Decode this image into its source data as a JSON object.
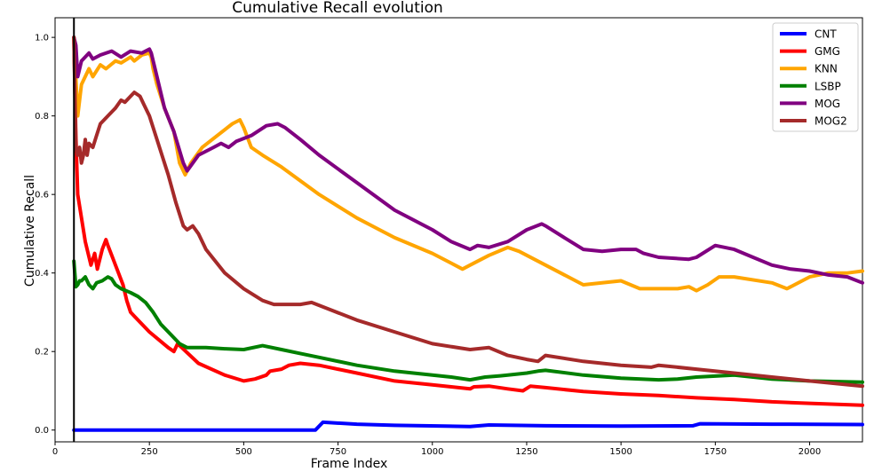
{
  "chart_data": {
    "type": "line",
    "title": "Cumulative Recall evolution",
    "xlabel": "Frame Index",
    "ylabel": "Cumulative Recall",
    "xlim": [
      0,
      2140
    ],
    "ylim": [
      -0.03,
      1.05
    ],
    "x_ticks": [
      0,
      250,
      500,
      750,
      1000,
      1250,
      1500,
      1750,
      2000
    ],
    "x_tick_labels": [
      "0",
      "250",
      "500",
      "750",
      "1000",
      "1250",
      "1500",
      "1750",
      "2000"
    ],
    "y_ticks": [
      0.0,
      0.2,
      0.4,
      0.6,
      0.8,
      1.0
    ],
    "y_tick_labels": [
      "0.0",
      "0.2",
      "0.4",
      "0.6",
      "0.8",
      "1.0"
    ],
    "grid": false,
    "legend_position": "top-right",
    "vertical_line_x": 50,
    "series": [
      {
        "name": "CNT",
        "color": "#0000ff",
        "points": [
          [
            50,
            0.0
          ],
          [
            690,
            0.0
          ],
          [
            710,
            0.02
          ],
          [
            800,
            0.015
          ],
          [
            900,
            0.012
          ],
          [
            1100,
            0.009
          ],
          [
            1150,
            0.013
          ],
          [
            1300,
            0.011
          ],
          [
            1500,
            0.01
          ],
          [
            1690,
            0.011
          ],
          [
            1710,
            0.016
          ],
          [
            1900,
            0.015
          ],
          [
            2140,
            0.014
          ]
        ]
      },
      {
        "name": "GMG",
        "color": "#ff0000",
        "points": [
          [
            50,
            1.0
          ],
          [
            55,
            0.75
          ],
          [
            60,
            0.6
          ],
          [
            80,
            0.48
          ],
          [
            95,
            0.42
          ],
          [
            105,
            0.45
          ],
          [
            112,
            0.41
          ],
          [
            125,
            0.46
          ],
          [
            135,
            0.485
          ],
          [
            140,
            0.47
          ],
          [
            160,
            0.42
          ],
          [
            180,
            0.37
          ],
          [
            190,
            0.33
          ],
          [
            200,
            0.3
          ],
          [
            210,
            0.29
          ],
          [
            250,
            0.25
          ],
          [
            300,
            0.21
          ],
          [
            315,
            0.2
          ],
          [
            325,
            0.22
          ],
          [
            380,
            0.17
          ],
          [
            450,
            0.14
          ],
          [
            500,
            0.125
          ],
          [
            530,
            0.13
          ],
          [
            560,
            0.14
          ],
          [
            570,
            0.15
          ],
          [
            600,
            0.155
          ],
          [
            620,
            0.165
          ],
          [
            650,
            0.17
          ],
          [
            700,
            0.165
          ],
          [
            800,
            0.145
          ],
          [
            900,
            0.125
          ],
          [
            1000,
            0.115
          ],
          [
            1050,
            0.11
          ],
          [
            1100,
            0.105
          ],
          [
            1110,
            0.11
          ],
          [
            1150,
            0.112
          ],
          [
            1200,
            0.105
          ],
          [
            1240,
            0.1
          ],
          [
            1260,
            0.112
          ],
          [
            1300,
            0.108
          ],
          [
            1400,
            0.098
          ],
          [
            1500,
            0.092
          ],
          [
            1600,
            0.088
          ],
          [
            1700,
            0.082
          ],
          [
            1800,
            0.078
          ],
          [
            1900,
            0.072
          ],
          [
            2000,
            0.068
          ],
          [
            2140,
            0.063
          ]
        ]
      },
      {
        "name": "KNN",
        "color": "#ffa500",
        "points": [
          [
            50,
            1.0
          ],
          [
            60,
            0.8
          ],
          [
            70,
            0.88
          ],
          [
            90,
            0.92
          ],
          [
            100,
            0.9
          ],
          [
            120,
            0.93
          ],
          [
            135,
            0.92
          ],
          [
            160,
            0.94
          ],
          [
            175,
            0.935
          ],
          [
            200,
            0.95
          ],
          [
            210,
            0.94
          ],
          [
            230,
            0.955
          ],
          [
            250,
            0.96
          ],
          [
            255,
            0.95
          ],
          [
            260,
            0.92
          ],
          [
            270,
            0.88
          ],
          [
            290,
            0.82
          ],
          [
            315,
            0.76
          ],
          [
            330,
            0.68
          ],
          [
            345,
            0.65
          ],
          [
            360,
            0.68
          ],
          [
            390,
            0.72
          ],
          [
            430,
            0.75
          ],
          [
            470,
            0.78
          ],
          [
            490,
            0.79
          ],
          [
            500,
            0.77
          ],
          [
            520,
            0.72
          ],
          [
            550,
            0.7
          ],
          [
            600,
            0.67
          ],
          [
            700,
            0.6
          ],
          [
            800,
            0.54
          ],
          [
            900,
            0.49
          ],
          [
            1000,
            0.45
          ],
          [
            1050,
            0.425
          ],
          [
            1080,
            0.41
          ],
          [
            1100,
            0.42
          ],
          [
            1150,
            0.445
          ],
          [
            1200,
            0.465
          ],
          [
            1230,
            0.455
          ],
          [
            1300,
            0.42
          ],
          [
            1400,
            0.37
          ],
          [
            1500,
            0.38
          ],
          [
            1550,
            0.36
          ],
          [
            1650,
            0.36
          ],
          [
            1680,
            0.365
          ],
          [
            1700,
            0.355
          ],
          [
            1730,
            0.37
          ],
          [
            1760,
            0.39
          ],
          [
            1800,
            0.39
          ],
          [
            1900,
            0.375
          ],
          [
            1940,
            0.36
          ],
          [
            2000,
            0.39
          ],
          [
            2050,
            0.4
          ],
          [
            2100,
            0.4
          ],
          [
            2140,
            0.405
          ]
        ]
      },
      {
        "name": "LSBP",
        "color": "#008000",
        "points": [
          [
            50,
            0.43
          ],
          [
            55,
            0.365
          ],
          [
            60,
            0.37
          ],
          [
            65,
            0.38
          ],
          [
            70,
            0.38
          ],
          [
            80,
            0.39
          ],
          [
            90,
            0.37
          ],
          [
            100,
            0.36
          ],
          [
            110,
            0.375
          ],
          [
            125,
            0.38
          ],
          [
            140,
            0.39
          ],
          [
            150,
            0.385
          ],
          [
            160,
            0.37
          ],
          [
            175,
            0.36
          ],
          [
            200,
            0.35
          ],
          [
            220,
            0.34
          ],
          [
            240,
            0.325
          ],
          [
            260,
            0.3
          ],
          [
            280,
            0.27
          ],
          [
            310,
            0.24
          ],
          [
            330,
            0.22
          ],
          [
            350,
            0.21
          ],
          [
            400,
            0.21
          ],
          [
            450,
            0.207
          ],
          [
            500,
            0.205
          ],
          [
            550,
            0.215
          ],
          [
            600,
            0.205
          ],
          [
            650,
            0.195
          ],
          [
            700,
            0.185
          ],
          [
            800,
            0.165
          ],
          [
            900,
            0.15
          ],
          [
            1000,
            0.14
          ],
          [
            1050,
            0.135
          ],
          [
            1100,
            0.128
          ],
          [
            1140,
            0.135
          ],
          [
            1180,
            0.138
          ],
          [
            1200,
            0.14
          ],
          [
            1250,
            0.145
          ],
          [
            1280,
            0.15
          ],
          [
            1300,
            0.152
          ],
          [
            1400,
            0.14
          ],
          [
            1500,
            0.132
          ],
          [
            1600,
            0.128
          ],
          [
            1650,
            0.13
          ],
          [
            1700,
            0.135
          ],
          [
            1800,
            0.14
          ],
          [
            1900,
            0.13
          ],
          [
            2000,
            0.125
          ],
          [
            2140,
            0.122
          ]
        ]
      },
      {
        "name": "MOG",
        "color": "#800080",
        "points": [
          [
            50,
            1.0
          ],
          [
            55,
            0.98
          ],
          [
            60,
            0.9
          ],
          [
            70,
            0.94
          ],
          [
            90,
            0.96
          ],
          [
            100,
            0.945
          ],
          [
            120,
            0.955
          ],
          [
            150,
            0.965
          ],
          [
            175,
            0.95
          ],
          [
            200,
            0.965
          ],
          [
            230,
            0.96
          ],
          [
            250,
            0.97
          ],
          [
            255,
            0.96
          ],
          [
            270,
            0.9
          ],
          [
            290,
            0.82
          ],
          [
            315,
            0.76
          ],
          [
            340,
            0.68
          ],
          [
            350,
            0.66
          ],
          [
            380,
            0.7
          ],
          [
            420,
            0.72
          ],
          [
            440,
            0.73
          ],
          [
            460,
            0.72
          ],
          [
            480,
            0.735
          ],
          [
            520,
            0.75
          ],
          [
            560,
            0.775
          ],
          [
            590,
            0.78
          ],
          [
            610,
            0.77
          ],
          [
            650,
            0.74
          ],
          [
            700,
            0.7
          ],
          [
            800,
            0.63
          ],
          [
            900,
            0.56
          ],
          [
            1000,
            0.51
          ],
          [
            1050,
            0.48
          ],
          [
            1100,
            0.46
          ],
          [
            1120,
            0.47
          ],
          [
            1150,
            0.465
          ],
          [
            1200,
            0.48
          ],
          [
            1250,
            0.51
          ],
          [
            1290,
            0.525
          ],
          [
            1300,
            0.52
          ],
          [
            1350,
            0.49
          ],
          [
            1400,
            0.46
          ],
          [
            1450,
            0.455
          ],
          [
            1500,
            0.46
          ],
          [
            1540,
            0.46
          ],
          [
            1560,
            0.45
          ],
          [
            1600,
            0.44
          ],
          [
            1680,
            0.435
          ],
          [
            1700,
            0.44
          ],
          [
            1750,
            0.47
          ],
          [
            1800,
            0.46
          ],
          [
            1850,
            0.44
          ],
          [
            1900,
            0.42
          ],
          [
            1950,
            0.41
          ],
          [
            2000,
            0.405
          ],
          [
            2050,
            0.395
          ],
          [
            2100,
            0.39
          ],
          [
            2140,
            0.375
          ]
        ]
      },
      {
        "name": "MOG2",
        "color": "#a52a2a",
        "points": [
          [
            50,
            1.0
          ],
          [
            55,
            0.72
          ],
          [
            60,
            0.7
          ],
          [
            65,
            0.72
          ],
          [
            70,
            0.68
          ],
          [
            75,
            0.7
          ],
          [
            80,
            0.74
          ],
          [
            85,
            0.7
          ],
          [
            90,
            0.73
          ],
          [
            100,
            0.72
          ],
          [
            110,
            0.75
          ],
          [
            120,
            0.78
          ],
          [
            140,
            0.8
          ],
          [
            160,
            0.82
          ],
          [
            175,
            0.84
          ],
          [
            185,
            0.835
          ],
          [
            200,
            0.85
          ],
          [
            210,
            0.86
          ],
          [
            225,
            0.85
          ],
          [
            235,
            0.83
          ],
          [
            250,
            0.8
          ],
          [
            270,
            0.74
          ],
          [
            300,
            0.65
          ],
          [
            320,
            0.58
          ],
          [
            340,
            0.52
          ],
          [
            350,
            0.51
          ],
          [
            365,
            0.52
          ],
          [
            380,
            0.5
          ],
          [
            400,
            0.46
          ],
          [
            450,
            0.4
          ],
          [
            500,
            0.36
          ],
          [
            550,
            0.33
          ],
          [
            580,
            0.32
          ],
          [
            620,
            0.32
          ],
          [
            650,
            0.32
          ],
          [
            680,
            0.325
          ],
          [
            720,
            0.31
          ],
          [
            800,
            0.28
          ],
          [
            900,
            0.25
          ],
          [
            1000,
            0.22
          ],
          [
            1100,
            0.205
          ],
          [
            1150,
            0.21
          ],
          [
            1200,
            0.19
          ],
          [
            1250,
            0.18
          ],
          [
            1280,
            0.175
          ],
          [
            1300,
            0.19
          ],
          [
            1400,
            0.175
          ],
          [
            1500,
            0.165
          ],
          [
            1580,
            0.16
          ],
          [
            1600,
            0.165
          ],
          [
            1700,
            0.155
          ],
          [
            1800,
            0.145
          ],
          [
            1900,
            0.135
          ],
          [
            2000,
            0.125
          ],
          [
            2140,
            0.112
          ]
        ]
      }
    ]
  }
}
